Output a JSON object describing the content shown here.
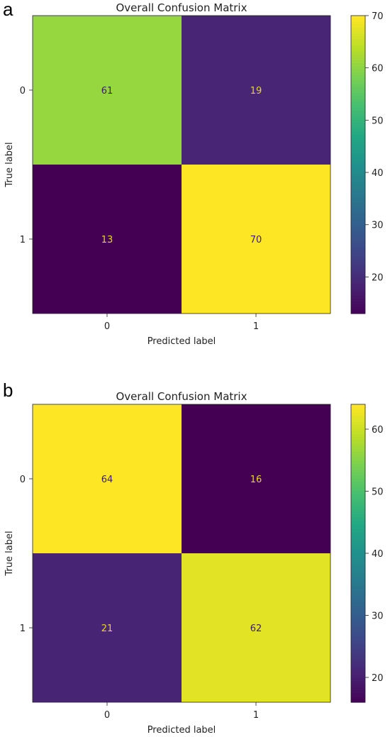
{
  "panels": [
    {
      "letter": "a"
    },
    {
      "letter": "b"
    }
  ],
  "chart_data": [
    {
      "type": "heatmap",
      "title": "Overall Confusion Matrix",
      "xlabel": "Predicted label",
      "ylabel": "True label",
      "x_categories": [
        "0",
        "1"
      ],
      "y_categories": [
        "0",
        "1"
      ],
      "values": [
        [
          61,
          19
        ],
        [
          13,
          70
        ]
      ],
      "colormap": "viridis",
      "color_range": [
        13,
        70
      ],
      "colorbar_ticks": [
        20,
        30,
        40,
        50,
        60,
        70
      ]
    },
    {
      "type": "heatmap",
      "title": "Overall Confusion Matrix",
      "xlabel": "Predicted label",
      "ylabel": "True label",
      "x_categories": [
        "0",
        "1"
      ],
      "y_categories": [
        "0",
        "1"
      ],
      "values": [
        [
          64,
          16
        ],
        [
          21,
          62
        ]
      ],
      "colormap": "viridis",
      "color_range": [
        16,
        64
      ],
      "colorbar_ticks": [
        20,
        30,
        40,
        50,
        60
      ]
    }
  ]
}
